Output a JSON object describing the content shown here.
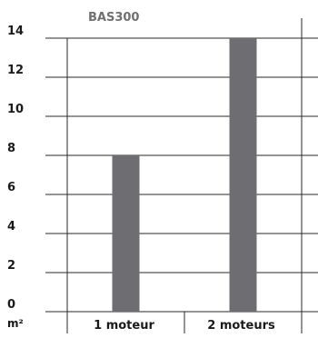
{
  "chart_data": {
    "type": "bar",
    "title": "BAS300",
    "ylabel": "m²",
    "xlabel": "",
    "categories": [
      "1 moteur",
      "2 moteurs"
    ],
    "values": [
      8,
      14
    ],
    "ylim": [
      0,
      14
    ],
    "yticks": [
      0,
      2,
      4,
      6,
      8,
      10,
      12,
      14
    ],
    "grid": true,
    "legend": "none",
    "bar_color": "#6d6d72"
  }
}
